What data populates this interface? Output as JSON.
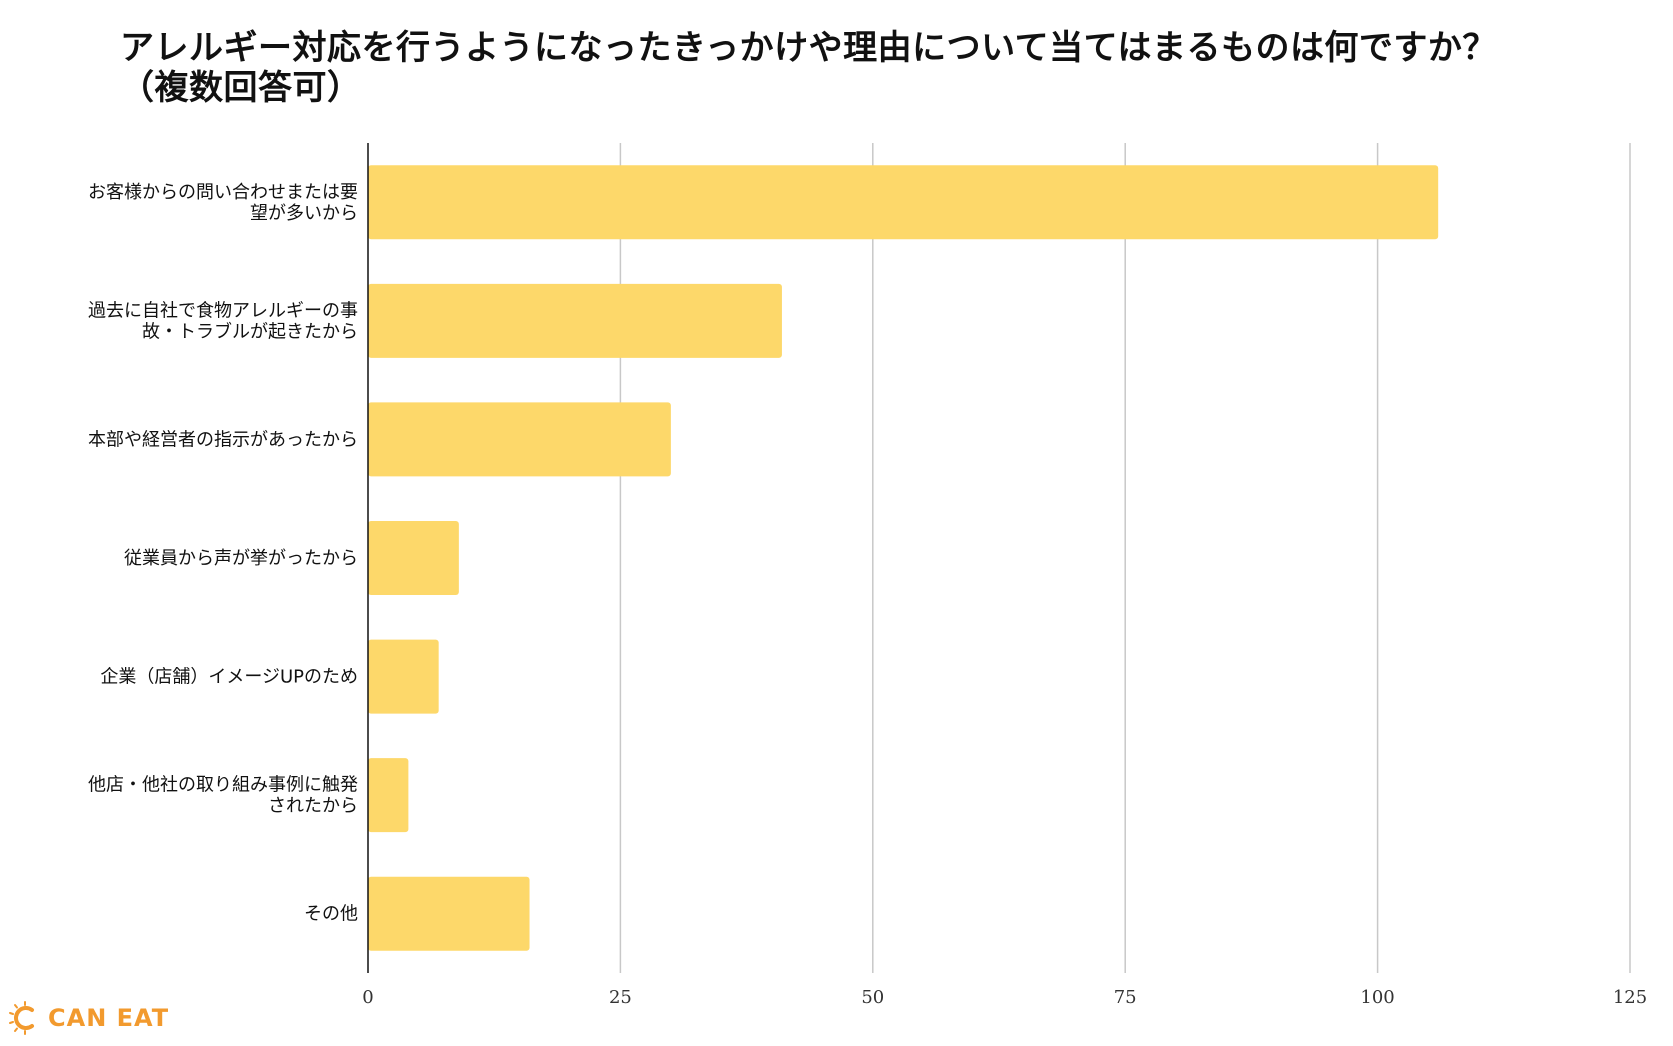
{
  "colors": {
    "bar": "#fdd86a",
    "grid": "#c8c8c8",
    "axis": "#111111",
    "logo": "#f29a2e"
  },
  "logo": {
    "text": "CAN EAT",
    "icon": "c-logo-icon"
  },
  "chart_data": {
    "type": "bar",
    "orientation": "horizontal",
    "title_lines": [
      "アレルギー対応を行うようになったきっかけや理由について当てはまるものは何ですか？",
      "（複数回答可）"
    ],
    "categories": [
      [
        "お客様からの問い合わせまたは要",
        "望が多いから"
      ],
      [
        "過去に自社で食物アレルギーの事",
        "故・トラブルが起きたから"
      ],
      [
        "本部や経営者の指示があったから"
      ],
      [
        "従業員から声が挙がったから"
      ],
      [
        "企業（店舗）イメージUPのため"
      ],
      [
        "他店・他社の取り組み事例に触発",
        "されたから"
      ],
      [
        "その他"
      ]
    ],
    "values": [
      106,
      41,
      30,
      9,
      7,
      4,
      16
    ],
    "xlim": [
      0,
      125
    ],
    "xticks": [
      "0",
      "25",
      "50",
      "75",
      "100",
      "125"
    ],
    "grid": true,
    "legend": false
  }
}
